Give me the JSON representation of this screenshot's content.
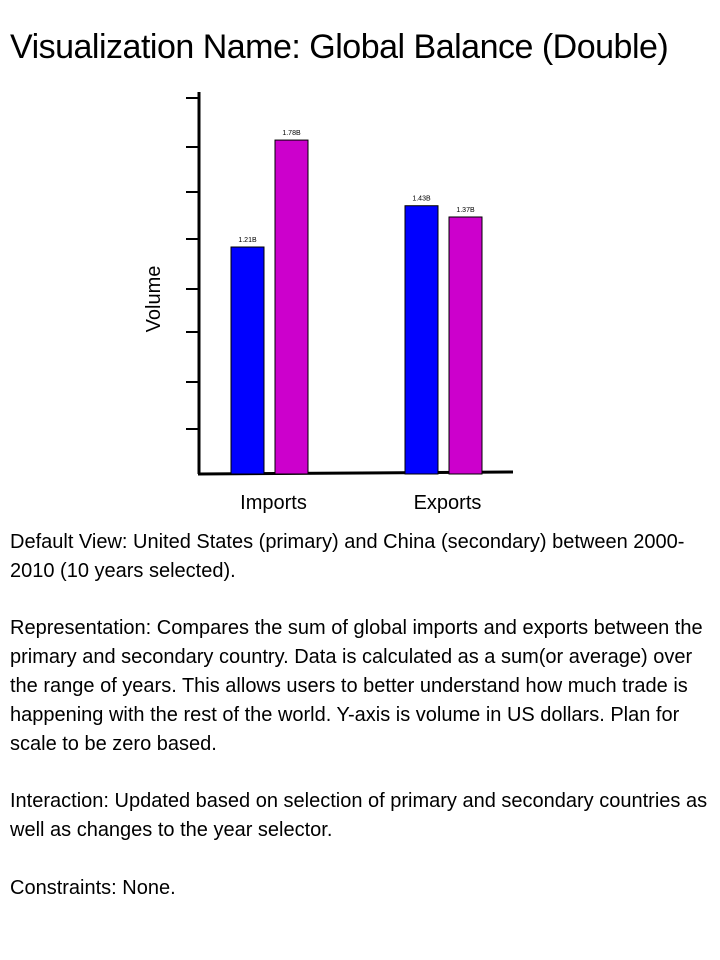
{
  "title": "Visualization Name: Global Balance (Double)",
  "chart_data": {
    "type": "bar",
    "ylabel": "Volume",
    "xlabel": "",
    "categories": [
      "Imports",
      "Exports"
    ],
    "ylim": [
      0,
      2.0
    ],
    "grid": false,
    "series": [
      {
        "values": [
          1.21,
          1.43
        ],
        "labels": [
          "1.21B",
          "1.43B"
        ],
        "color": "#0000ff"
      },
      {
        "values": [
          1.78,
          1.37
        ],
        "labels": [
          "1.78B",
          "1.37B"
        ],
        "color": "#cc00cc"
      }
    ]
  },
  "description": {
    "default_view": "Default View: United States (primary) and China (secondary) between 2000-2010 (10 years selected).",
    "representation": "Representation: Compares the sum of global imports and exports between the primary and secondary country. Data is calculated as a sum(or average) over the range of years. This allows users to better understand how much trade is happening with the rest of the world. Y-axis is volume in US dollars. Plan for scale to be zero based.",
    "interaction": "Interaction: Updated based on selection of primary and secondary countries as well as changes to the year selector.",
    "constraints": "Constraints: None."
  }
}
